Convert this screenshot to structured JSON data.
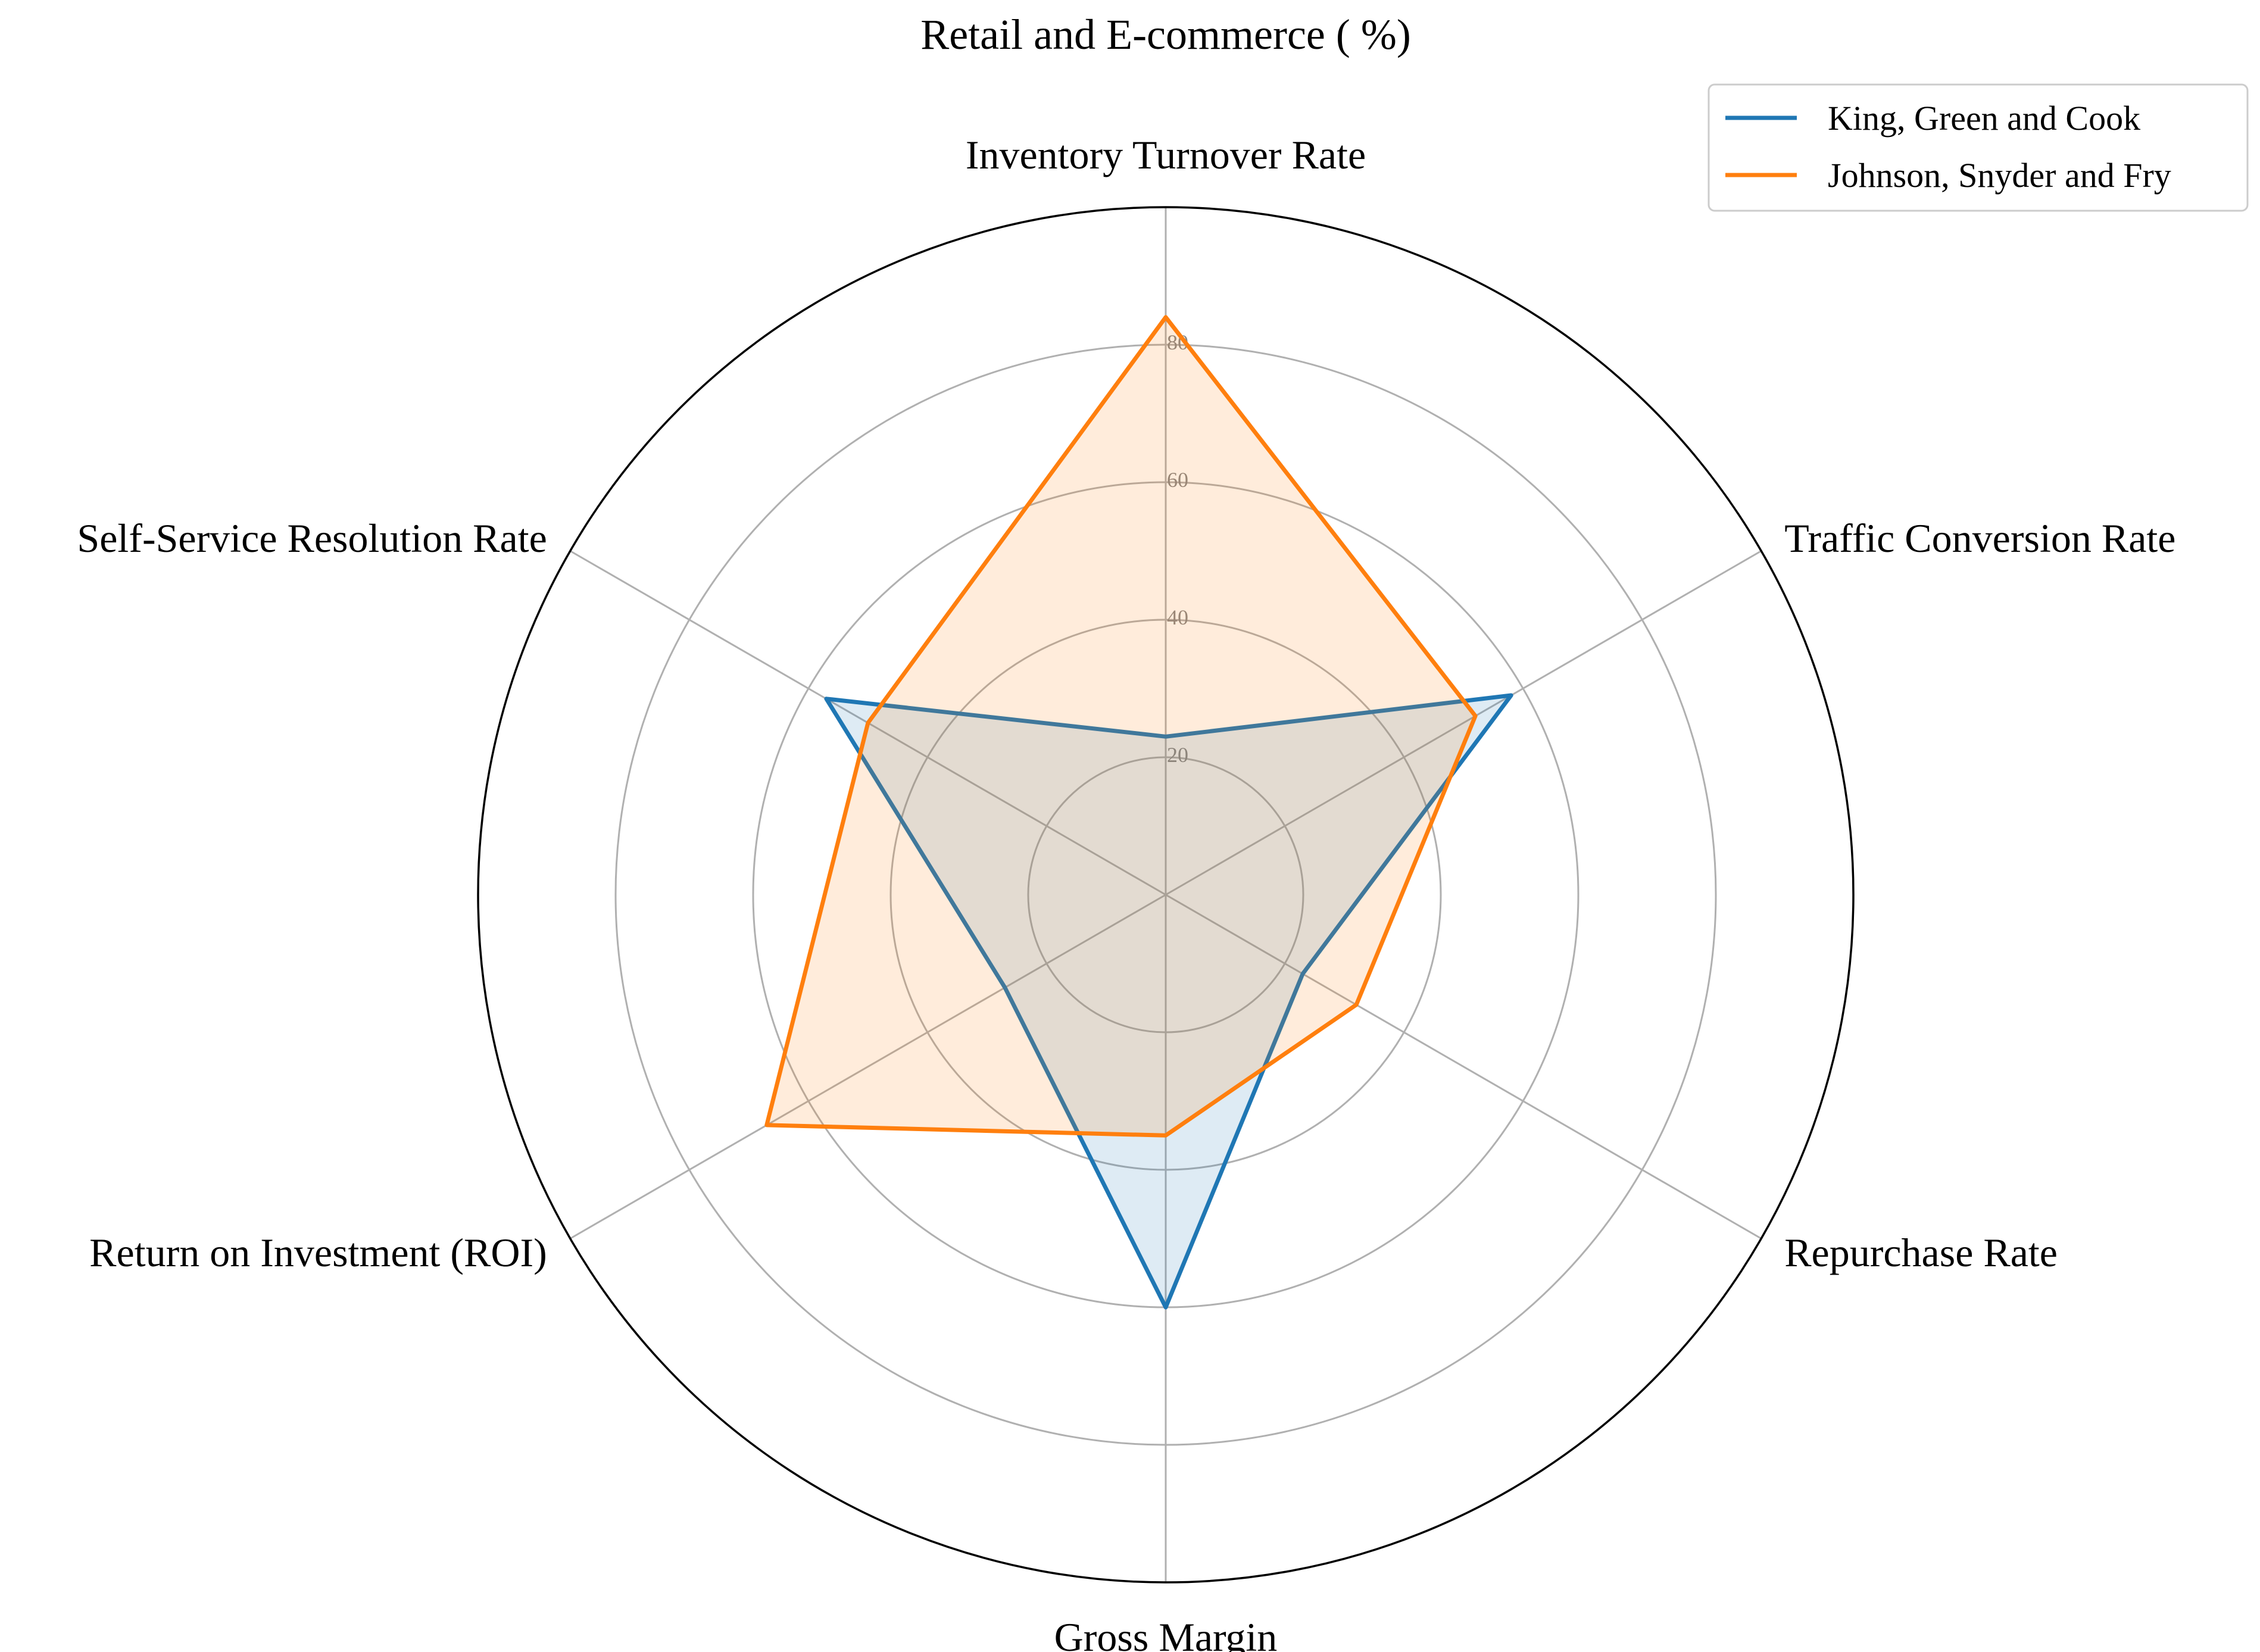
{
  "chart_data": {
    "type": "radar",
    "title": "Retail and E-commerce ( %)",
    "axes": [
      "Inventory Turnover Rate",
      "Traffic Conversion Rate",
      "Repurchase Rate",
      "Gross Margin",
      "Return on Investment (ROI)",
      "Self-Service Resolution Rate"
    ],
    "rmax": 100,
    "ticks": [
      20,
      40,
      60,
      80
    ],
    "grid": true,
    "legend_position": "top-right",
    "series": [
      {
        "name": "King, Green and Cook",
        "color": "#1f77b4",
        "values": [
          23,
          58,
          23,
          60,
          27,
          57
        ]
      },
      {
        "name": "Johnson, Snyder and Fry",
        "color": "#ff7f0e",
        "values": [
          84,
          52,
          32,
          35,
          67,
          50
        ]
      }
    ]
  }
}
